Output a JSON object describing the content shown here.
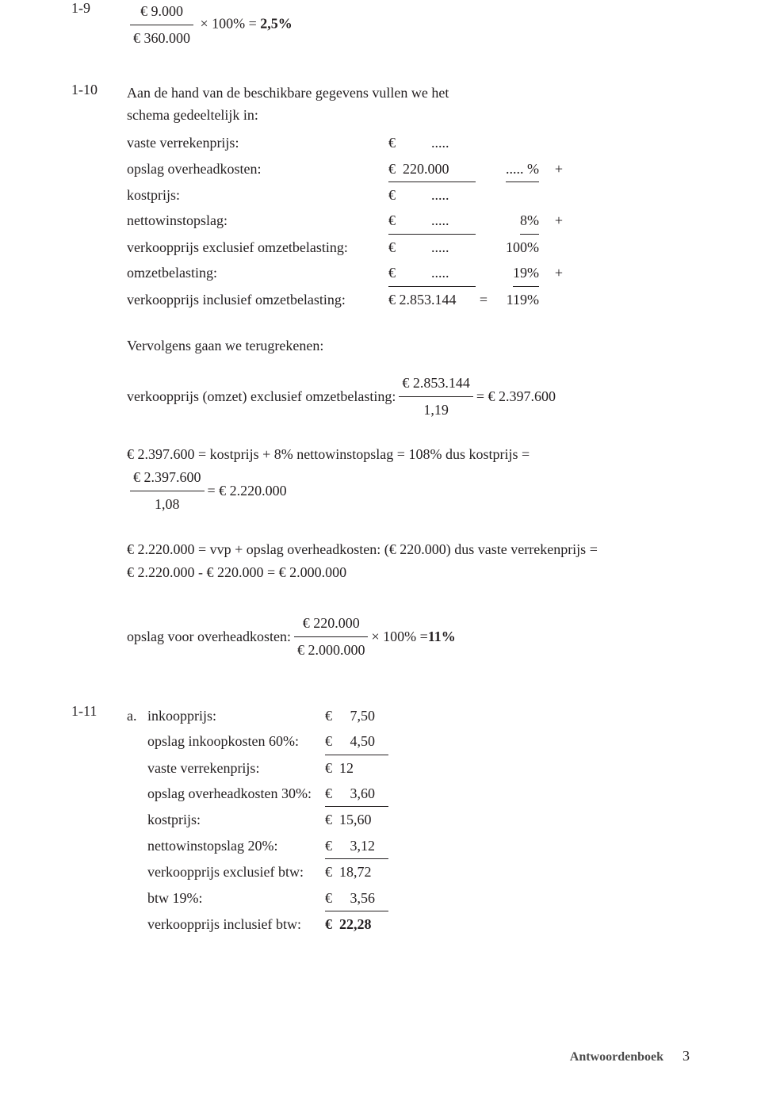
{
  "q19": {
    "num": "1-9",
    "frac_num": "€ 9.000",
    "frac_den": "€ 360.000",
    "tail": " × 100% = ",
    "result": "2,5%"
  },
  "q110": {
    "num": "1-10",
    "intro1": "Aan de hand van de beschikbare gegevens vullen we het",
    "intro2": "schema gedeeltelijk in:",
    "rows": [
      {
        "label": "vaste verrekenprijs:",
        "val": "€          .....",
        "eq": "",
        "pct": "",
        "plus": ""
      },
      {
        "label": "opslag overheadkosten:",
        "val": "€  220.000",
        "eq": "",
        "pct": "..... %",
        "plus": "+",
        "uline": true
      },
      {
        "label": "kostprijs:",
        "val": "€          .....",
        "eq": "",
        "pct": "",
        "plus": ""
      },
      {
        "label": "nettowinstopslag:",
        "val": "€          .....",
        "eq": "",
        "pct": "8%",
        "plus": "+",
        "uline": true
      },
      {
        "label": "verkoopprijs exclusief omzetbelasting:",
        "val": "€          .....",
        "eq": "",
        "pct": "100%",
        "plus": ""
      },
      {
        "label": "omzetbelasting:",
        "val": "€          .....",
        "eq": "",
        "pct": "19%",
        "plus": "+",
        "uline": true
      },
      {
        "label": "verkoopprijs inclusief omzetbelasting:",
        "val": "€ 2.853.144",
        "eq": "=",
        "pct": "119%",
        "plus": ""
      }
    ],
    "terug": "Vervolgens gaan we terugrekenen:",
    "calc1_label": "verkoopprijs (omzet) exclusief omzetbelasting: ",
    "calc1_num": "€ 2.853.144",
    "calc1_den": "1,19",
    "calc1_tail": " = € 2.397.600",
    "kost1": "€ 2.397.600 = kostprijs + 8% nettowinstopslag = 108% dus kostprijs =",
    "kost_num": "€ 2.397.600",
    "kost_den": "1,08",
    "kost_tail": " = € 2.220.000",
    "vvp1": "€ 2.220.000 = vvp + opslag overheadkosten: (€ 220.000) dus vaste verrekenprijs =",
    "vvp2": "€ 2.220.000 - € 220.000 = € 2.000.000",
    "ovk_label": "opslag voor overheadkosten: ",
    "ovk_num": "€ 220.000",
    "ovk_den": "€ 2.000.000",
    "ovk_tail": " × 100% = ",
    "ovk_res": "11%"
  },
  "q111": {
    "num": "1-11",
    "sub": "a.",
    "rows": [
      {
        "label": "inkoopprijs:",
        "val": "€     7,50"
      },
      {
        "label": "opslag inkoopkosten 60%:",
        "val": "€     4,50",
        "uline": true
      },
      {
        "label": "vaste verrekenprijs:",
        "val": "€  12"
      },
      {
        "label": "opslag overheadkosten 30%:",
        "val": "€     3,60",
        "uline": true
      },
      {
        "label": "kostprijs:",
        "val": "€  15,60"
      },
      {
        "label": "nettowinstopslag 20%:",
        "val": "€     3,12",
        "uline": true
      },
      {
        "label": "verkoopprijs exclusief btw:",
        "val": "€  18,72"
      },
      {
        "label": "btw 19%:",
        "val": "€     3,56",
        "uline": true
      },
      {
        "label": "verkoopprijs inclusief btw:",
        "val": "€  22,28",
        "bold": true
      }
    ]
  },
  "footer": {
    "label": "Antwoordenboek",
    "page": "3"
  },
  "colors": {
    "text": "#231f20",
    "footer_label": "#4b4b4b"
  }
}
